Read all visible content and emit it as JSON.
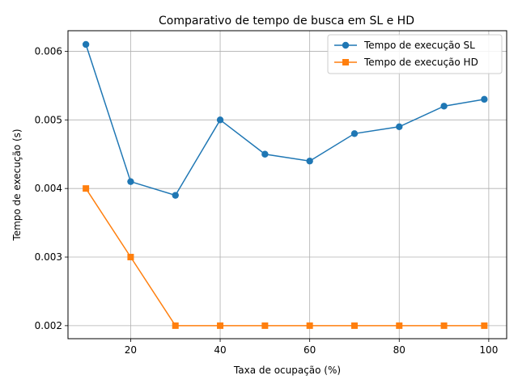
{
  "chart_data": {
    "type": "line",
    "title": "Comparativo de tempo de busca em SL e HD",
    "xlabel": "Taxa de ocupação (%)",
    "ylabel": "Tempo de execução (s)",
    "xlim": [
      6,
      104
    ],
    "ylim": [
      0.00181,
      0.0063
    ],
    "xticks": [
      20,
      40,
      60,
      80,
      100
    ],
    "yticks": [
      0.002,
      0.003,
      0.004,
      0.005,
      0.006
    ],
    "yticklabels": [
      "0.002",
      "0.003",
      "0.004",
      "0.005",
      "0.006"
    ],
    "grid": true,
    "legend_position": "top-right",
    "x": [
      10,
      20,
      30,
      40,
      50,
      60,
      70,
      80,
      90,
      99
    ],
    "series": [
      {
        "name": "Tempo de execução SL",
        "color": "#1f77b4",
        "marker": "circle",
        "values": [
          0.0061,
          0.0041,
          0.0039,
          0.005,
          0.0045,
          0.0044,
          0.0048,
          0.0049,
          0.0052,
          0.0053
        ]
      },
      {
        "name": "Tempo de execução HD",
        "color": "#ff7f0e",
        "marker": "square",
        "values": [
          0.004,
          0.003,
          0.002,
          0.002,
          0.002,
          0.002,
          0.002,
          0.002,
          0.002,
          0.002
        ]
      }
    ]
  }
}
